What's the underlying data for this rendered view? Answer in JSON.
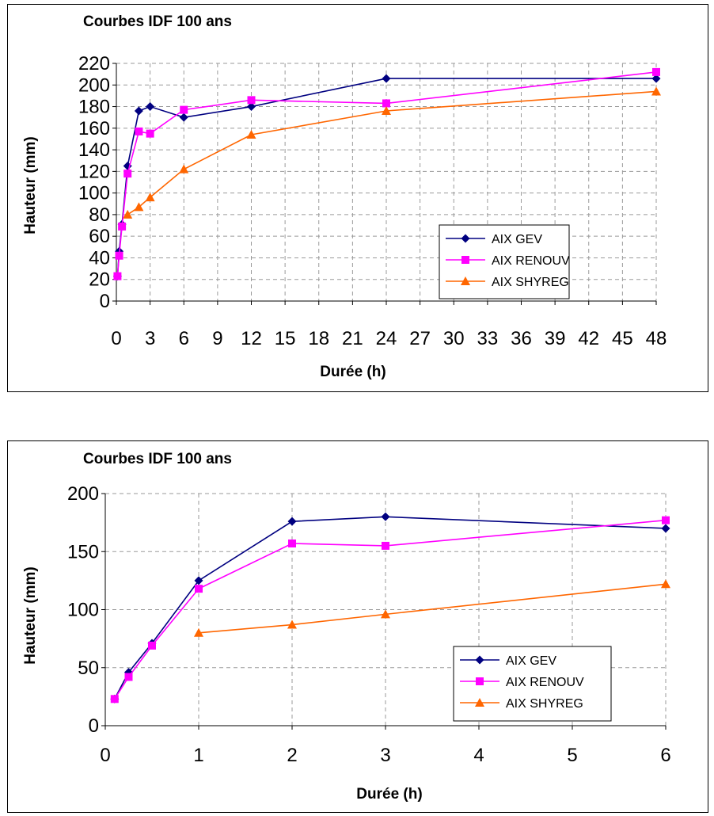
{
  "chart_data": [
    {
      "type": "line",
      "title": "Courbes IDF 100 ans",
      "xlabel": "Durée (h)",
      "ylabel": "Hauteur (mm)",
      "xlim": [
        0,
        48
      ],
      "ylim": [
        0,
        220
      ],
      "xticks": [
        0,
        3,
        6,
        9,
        12,
        15,
        18,
        21,
        24,
        27,
        30,
        33,
        36,
        39,
        42,
        45,
        48
      ],
      "yticks": [
        0,
        20,
        40,
        60,
        80,
        100,
        120,
        140,
        160,
        180,
        200,
        220
      ],
      "grid": true,
      "legend_position": "right",
      "series": [
        {
          "name": "AIX GEV",
          "color": "#000080",
          "marker": "diamond",
          "x": [
            0.1,
            0.25,
            0.5,
            1,
            2,
            3,
            6,
            12,
            24,
            48
          ],
          "y": [
            23,
            46,
            71,
            125,
            176,
            180,
            170,
            180,
            206,
            206
          ]
        },
        {
          "name": "AIX RENOUV",
          "color": "#ff00ff",
          "marker": "square",
          "x": [
            0.1,
            0.25,
            0.5,
            1,
            2,
            3,
            6,
            12,
            24,
            48
          ],
          "y": [
            23,
            42,
            69,
            118,
            157,
            155,
            177,
            186,
            183,
            212
          ]
        },
        {
          "name": "AIX SHYREG",
          "color": "#ff6600",
          "marker": "triangle",
          "x": [
            1,
            2,
            3,
            6,
            12,
            24,
            48
          ],
          "y": [
            80,
            87,
            96,
            122,
            154,
            176,
            194
          ]
        }
      ]
    },
    {
      "type": "line",
      "title": "Courbes IDF 100 ans",
      "xlabel": "Durée (h)",
      "ylabel": "Hauteur (mm)",
      "xlim": [
        0,
        6
      ],
      "ylim": [
        0,
        200
      ],
      "xticks": [
        0,
        1,
        2,
        3,
        4,
        5,
        6
      ],
      "yticks": [
        0,
        50,
        100,
        150,
        200
      ],
      "grid": true,
      "legend_position": "right",
      "series": [
        {
          "name": "AIX GEV",
          "color": "#000080",
          "marker": "diamond",
          "x": [
            0.1,
            0.25,
            0.5,
            1,
            2,
            3,
            6
          ],
          "y": [
            23,
            46,
            71,
            125,
            176,
            180,
            170
          ]
        },
        {
          "name": "AIX RENOUV",
          "color": "#ff00ff",
          "marker": "square",
          "x": [
            0.1,
            0.25,
            0.5,
            1,
            2,
            3,
            6
          ],
          "y": [
            23,
            42,
            69,
            118,
            157,
            155,
            177
          ]
        },
        {
          "name": "AIX SHYREG",
          "color": "#ff6600",
          "marker": "triangle",
          "x": [
            1,
            2,
            3,
            6
          ],
          "y": [
            80,
            87,
            96,
            122
          ]
        }
      ]
    }
  ]
}
